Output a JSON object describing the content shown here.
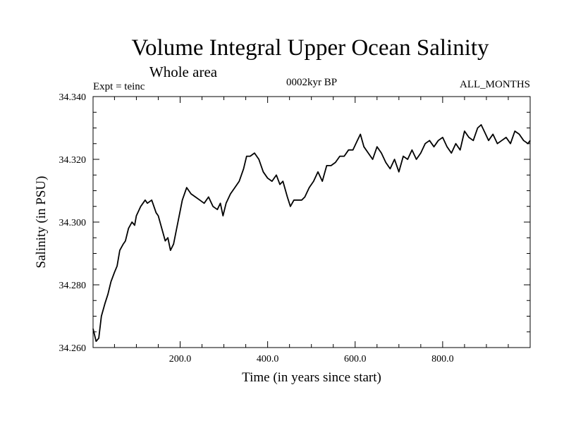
{
  "chart_data": {
    "type": "line",
    "title": "Volume Integral Upper Ocean Salinity",
    "subtitle": "Whole area",
    "left_label": "Expt = teinc",
    "center_label": "0002kyr BP",
    "right_label": "ALL_MONTHS",
    "xlabel": "Time (in years since start)",
    "ylabel": "Salinity (in PSU)",
    "xlim": [
      1,
      1000
    ],
    "ylim": [
      34.26,
      34.34
    ],
    "x_tick_labels": [
      "200.0",
      "400.0",
      "600.0",
      "800.0"
    ],
    "y_tick_labels": [
      "34.260",
      "34.280",
      "34.300",
      "34.320",
      "34.340"
    ],
    "series": [
      {
        "name": "salinity",
        "color": "#000000",
        "x": [
          1,
          8,
          14,
          20,
          28,
          35,
          42,
          50,
          56,
          62,
          70,
          75,
          82,
          90,
          96,
          100,
          110,
          120,
          125,
          135,
          145,
          150,
          160,
          166,
          172,
          178,
          185,
          195,
          205,
          215,
          225,
          235,
          245,
          255,
          265,
          275,
          285,
          292,
          298,
          305,
          315,
          325,
          335,
          345,
          352,
          360,
          370,
          380,
          390,
          400,
          410,
          420,
          428,
          435,
          445,
          452,
          460,
          470,
          478,
          485,
          495,
          505,
          515,
          525,
          535,
          545,
          555,
          565,
          575,
          585,
          595,
          605,
          612,
          620,
          630,
          640,
          650,
          660,
          670,
          680,
          690,
          700,
          710,
          720,
          730,
          740,
          750,
          760,
          770,
          780,
          790,
          800,
          810,
          820,
          830,
          840,
          850,
          860,
          870,
          880,
          888,
          895,
          905,
          915,
          925,
          935,
          945,
          955,
          965,
          975,
          985,
          995,
          1000
        ],
        "y": [
          34.266,
          34.262,
          34.263,
          34.27,
          34.274,
          34.277,
          34.281,
          34.284,
          34.286,
          34.291,
          34.293,
          34.294,
          34.298,
          34.3,
          34.299,
          34.302,
          34.305,
          34.307,
          34.306,
          34.307,
          34.303,
          34.302,
          34.297,
          34.294,
          34.295,
          34.291,
          34.293,
          34.3,
          34.307,
          34.311,
          34.309,
          34.308,
          34.307,
          34.306,
          34.308,
          34.305,
          34.304,
          34.306,
          34.302,
          34.306,
          34.309,
          34.311,
          34.313,
          34.317,
          34.321,
          34.321,
          34.322,
          34.32,
          34.316,
          34.314,
          34.313,
          34.315,
          34.312,
          34.313,
          34.308,
          34.305,
          34.307,
          34.307,
          34.307,
          34.308,
          34.311,
          34.313,
          34.316,
          34.313,
          34.318,
          34.318,
          34.319,
          34.321,
          34.321,
          34.323,
          34.323,
          34.326,
          34.328,
          34.324,
          34.322,
          34.32,
          34.324,
          34.322,
          34.319,
          34.317,
          34.32,
          34.316,
          34.321,
          34.32,
          34.323,
          34.32,
          34.322,
          34.325,
          34.326,
          34.324,
          34.326,
          34.327,
          34.324,
          34.322,
          34.325,
          34.323,
          34.329,
          34.327,
          34.326,
          34.33,
          34.331,
          34.329,
          34.326,
          34.328,
          34.325,
          34.326,
          34.327,
          34.325,
          34.329,
          34.328,
          34.326,
          34.325,
          34.326
        ]
      }
    ]
  }
}
